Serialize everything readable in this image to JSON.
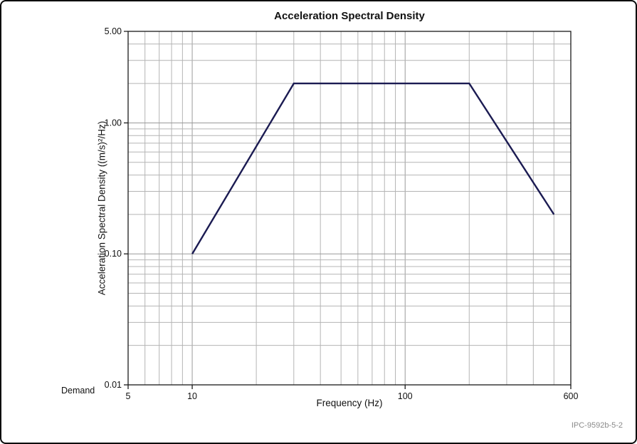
{
  "figure": {
    "code": "IPC-9592b-5-2",
    "legend_label": "Demand"
  },
  "chart_data": {
    "type": "line",
    "title": "Acceleration Spectral Density",
    "xlabel": "Frequency (Hz)",
    "ylabel": "Acceleration Spectral Density ((m/s)²/Hz)",
    "x_scale": "log",
    "y_scale": "log",
    "xlim": [
      5,
      600
    ],
    "ylim": [
      0.01,
      5
    ],
    "grid": true,
    "legend_position": "bottom-left",
    "x_ticks": [
      {
        "value": 5,
        "label": "5"
      },
      {
        "value": 10,
        "label": "10"
      },
      {
        "value": 100,
        "label": "100"
      },
      {
        "value": 600,
        "label": "600"
      }
    ],
    "y_ticks": [
      {
        "value": 5,
        "label": "5.00"
      },
      {
        "value": 1,
        "label": "1.00"
      },
      {
        "value": 0.1,
        "label": "0.10"
      },
      {
        "value": 0.01,
        "label": "0.01"
      }
    ],
    "series": [
      {
        "name": "Demand",
        "color": "#1b1b52",
        "points": [
          [
            10,
            0.1
          ],
          [
            30,
            2.0
          ],
          [
            200,
            2.0
          ],
          [
            500,
            0.2
          ]
        ]
      }
    ]
  }
}
